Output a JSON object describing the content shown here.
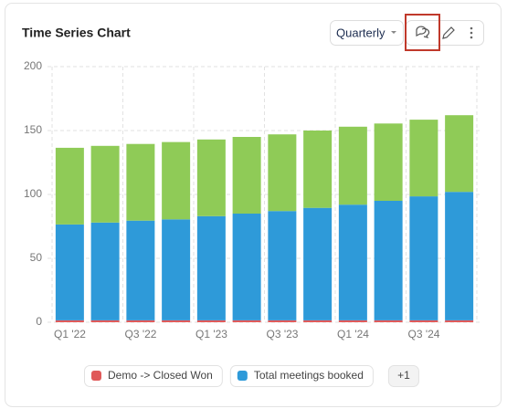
{
  "chart_data": {
    "type": "stacked-bar",
    "title": "Time Series Chart",
    "categories": [
      "Q1 '22",
      null,
      "Q3 '22",
      null,
      "Q1 '23",
      null,
      "Q3 '23",
      null,
      "Q1 '24",
      null,
      "Q3 '24",
      null
    ],
    "series": [
      {
        "name": "Demo -> Closed Won",
        "color": "#e05a5a",
        "values": [
          1.5,
          1.5,
          1.5,
          1.5,
          1.5,
          1.5,
          1.5,
          1.5,
          1.5,
          1.5,
          1.5,
          1.5
        ]
      },
      {
        "name": "Total meetings booked",
        "color": "#2e9ad9",
        "values": [
          75,
          76.5,
          78,
          79,
          81.5,
          83.5,
          85.5,
          88,
          90.5,
          93.5,
          97,
          100.5
        ]
      },
      {
        "color": "#8fcb57",
        "values": [
          60,
          60,
          60,
          60.5,
          60,
          60,
          60,
          60.5,
          61,
          60.5,
          60,
          60
        ]
      }
    ],
    "ylim": [
      0,
      200
    ],
    "yticks": [
      0,
      50,
      100,
      150,
      200
    ],
    "grid": true
  },
  "ui": {
    "period": "Quarterly",
    "legend_more": "+1"
  }
}
